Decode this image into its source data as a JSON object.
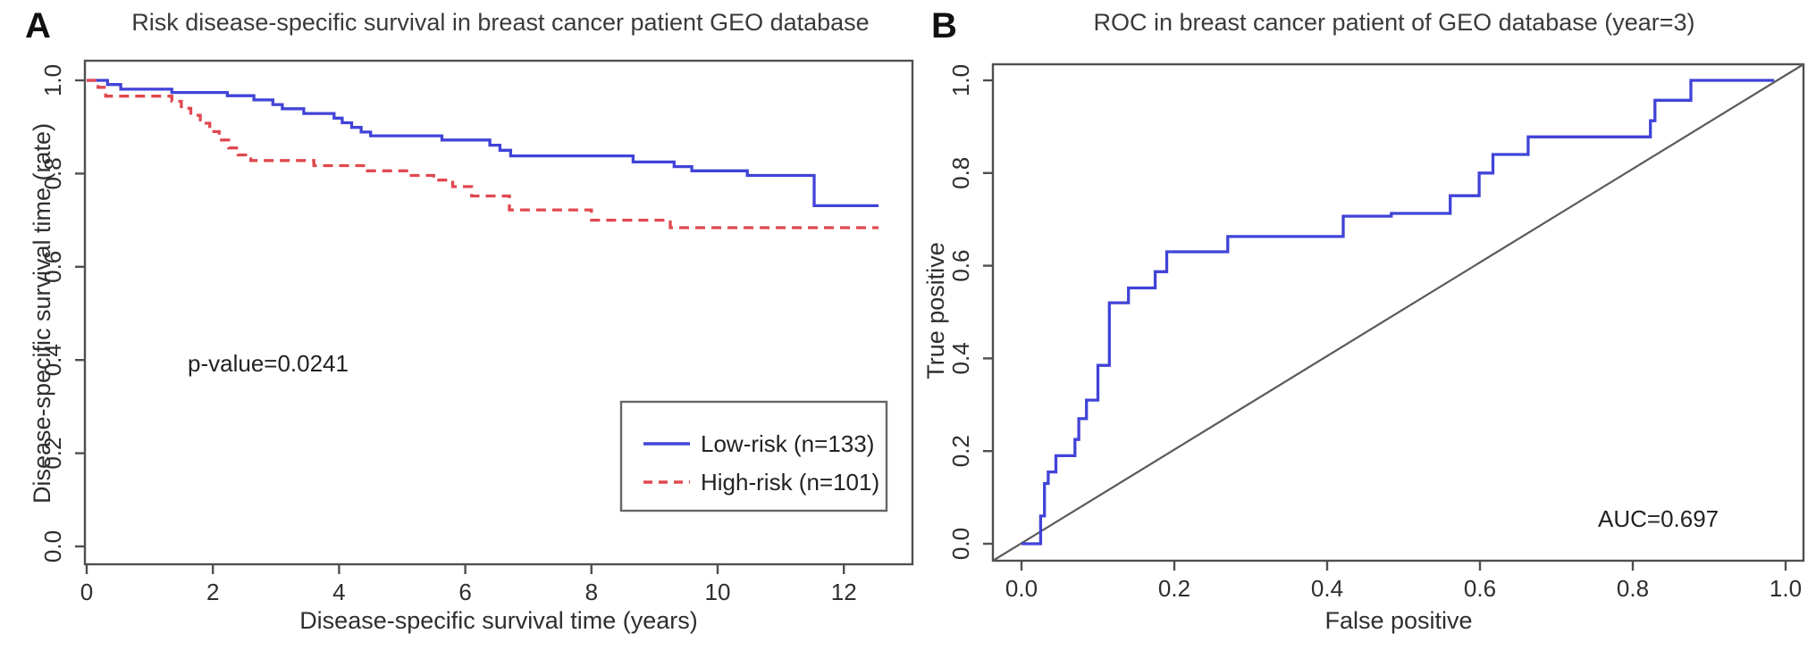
{
  "figure": {
    "background": "#ffffff"
  },
  "panels": [
    {
      "letter": "A"
    },
    {
      "letter": "B"
    }
  ],
  "colors": {
    "low_risk_blue": "#4143d7",
    "high_risk_red": "#e0484f",
    "axis_gray": "#4f4f4f",
    "diagonal_gray": "#5a5a5a"
  },
  "chart_data": [
    {
      "type": "line",
      "subtype": "kaplan_meier_step",
      "title": "Risk disease-specific survival in breast cancer patient GEO database",
      "xlabel": "Disease-specific survival time (years)",
      "ylabel": "Disease-specific survival time (rate)",
      "xlim": [
        0,
        13
      ],
      "ylim": [
        0,
        1
      ],
      "xticks": [
        "0",
        "2",
        "4",
        "6",
        "8",
        "10",
        "12"
      ],
      "yticks": [
        "0.0",
        "0.2",
        "0.4",
        "0.6",
        "0.8",
        "1.0"
      ],
      "grid": false,
      "annotation": {
        "text": "p-value=0.0241"
      },
      "legend": {
        "position": "lower-right",
        "entries": [
          {
            "label": "Low-risk (n=133)",
            "color": "#4143d7",
            "line_style": "solid"
          },
          {
            "label": "High-risk (n=101)",
            "color": "#e0484f",
            "line_style": "dashed"
          }
        ]
      },
      "series": [
        {
          "name": "Low-risk (n=133)",
          "color": "#4143d7",
          "line_style": "solid",
          "step": true,
          "points": [
            [
              0,
              1.0
            ],
            [
              0.33,
              0.991
            ],
            [
              0.54,
              0.981
            ],
            [
              1.35,
              0.974
            ],
            [
              2.23,
              0.967
            ],
            [
              2.65,
              0.958
            ],
            [
              2.95,
              0.948
            ],
            [
              3.1,
              0.939
            ],
            [
              3.44,
              0.929
            ],
            [
              3.92,
              0.919
            ],
            [
              4.05,
              0.909
            ],
            [
              4.2,
              0.899
            ],
            [
              4.35,
              0.889
            ],
            [
              4.5,
              0.881
            ],
            [
              5.63,
              0.872
            ],
            [
              6.39,
              0.861
            ],
            [
              6.55,
              0.85
            ],
            [
              6.72,
              0.838
            ],
            [
              8.66,
              0.825
            ],
            [
              9.31,
              0.815
            ],
            [
              9.59,
              0.806
            ],
            [
              10.47,
              0.796
            ],
            [
              11.53,
              0.731
            ],
            [
              12.55,
              0.731
            ]
          ]
        },
        {
          "name": "High-risk (n=101)",
          "color": "#e0484f",
          "line_style": "dashed",
          "step": true,
          "points": [
            [
              0,
              1.0
            ],
            [
              0.18,
              0.985
            ],
            [
              0.3,
              0.966
            ],
            [
              1.35,
              0.955
            ],
            [
              1.5,
              0.94
            ],
            [
              1.65,
              0.925
            ],
            [
              1.8,
              0.908
            ],
            [
              1.95,
              0.89
            ],
            [
              2.1,
              0.872
            ],
            [
              2.25,
              0.855
            ],
            [
              2.4,
              0.84
            ],
            [
              2.6,
              0.828
            ],
            [
              3.6,
              0.817
            ],
            [
              4.45,
              0.806
            ],
            [
              5.1,
              0.796
            ],
            [
              5.5,
              0.786
            ],
            [
              5.8,
              0.772
            ],
            [
              6.1,
              0.752
            ],
            [
              6.7,
              0.722
            ],
            [
              8.0,
              0.7
            ],
            [
              9.25,
              0.684
            ],
            [
              12.55,
              0.684
            ]
          ]
        }
      ]
    },
    {
      "type": "line",
      "subtype": "roc",
      "title": "ROC in breast cancer patient of GEO database (year=3)",
      "xlabel": "False positive",
      "ylabel": "True positive",
      "xlim": [
        0,
        1
      ],
      "ylim": [
        0,
        1
      ],
      "xticks": [
        "0.0",
        "0.2",
        "0.4",
        "0.6",
        "0.8",
        "1.0"
      ],
      "yticks": [
        "0.0",
        "0.2",
        "0.4",
        "0.6",
        "0.8",
        "1.0"
      ],
      "grid": false,
      "diagonal": true,
      "annotation": {
        "text": "AUC=0.697"
      },
      "series": [
        {
          "name": "ROC curve",
          "color": "#4143d7",
          "line_style": "solid",
          "step": false,
          "points": [
            [
              0,
              0
            ],
            [
              0.025,
              0
            ],
            [
              0.025,
              0.06
            ],
            [
              0.03,
              0.06
            ],
            [
              0.03,
              0.13
            ],
            [
              0.035,
              0.13
            ],
            [
              0.035,
              0.155
            ],
            [
              0.045,
              0.155
            ],
            [
              0.045,
              0.19
            ],
            [
              0.07,
              0.19
            ],
            [
              0.07,
              0.225
            ],
            [
              0.075,
              0.225
            ],
            [
              0.075,
              0.27
            ],
            [
              0.085,
              0.27
            ],
            [
              0.085,
              0.31
            ],
            [
              0.1,
              0.31
            ],
            [
              0.1,
              0.385
            ],
            [
              0.115,
              0.385
            ],
            [
              0.115,
              0.52
            ],
            [
              0.14,
              0.52
            ],
            [
              0.14,
              0.552
            ],
            [
              0.175,
              0.552
            ],
            [
              0.175,
              0.587
            ],
            [
              0.19,
              0.587
            ],
            [
              0.19,
              0.63
            ],
            [
              0.27,
              0.63
            ],
            [
              0.27,
              0.663
            ],
            [
              0.421,
              0.663
            ],
            [
              0.421,
              0.707
            ],
            [
              0.484,
              0.707
            ],
            [
              0.484,
              0.713
            ],
            [
              0.561,
              0.713
            ],
            [
              0.561,
              0.751
            ],
            [
              0.599,
              0.751
            ],
            [
              0.599,
              0.8
            ],
            [
              0.617,
              0.8
            ],
            [
              0.617,
              0.84
            ],
            [
              0.663,
              0.84
            ],
            [
              0.663,
              0.878
            ],
            [
              0.823,
              0.878
            ],
            [
              0.823,
              0.913
            ],
            [
              0.829,
              0.913
            ],
            [
              0.829,
              0.957
            ],
            [
              0.876,
              0.957
            ],
            [
              0.876,
              1.0
            ],
            [
              0.985,
              1.0
            ]
          ]
        }
      ]
    }
  ]
}
